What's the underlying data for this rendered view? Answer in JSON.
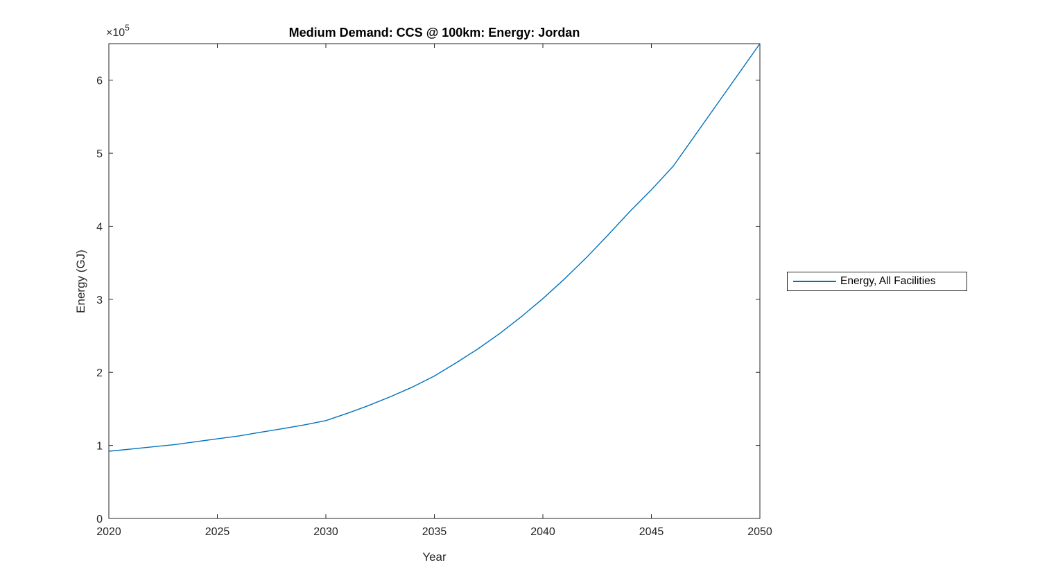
{
  "figure": {
    "background_color": "#ffffff",
    "axis_color": "#262626",
    "accent_color": "#0072BD"
  },
  "chart_data": {
    "type": "line",
    "title": "Medium Demand: CCS @ 100km: Energy: Jordan",
    "xlabel": "Year",
    "ylabel": "Energy (GJ)",
    "xlim": [
      2020,
      2050
    ],
    "ylim": [
      0,
      650000
    ],
    "grid": false,
    "legend_position": "right-outside",
    "x_ticks": [
      2020,
      2025,
      2030,
      2035,
      2040,
      2045,
      2050
    ],
    "x_tick_labels": [
      "2020",
      "2025",
      "2030",
      "2035",
      "2040",
      "2045",
      "2050"
    ],
    "y_ticks": [
      0,
      100000,
      200000,
      300000,
      400000,
      500000,
      600000
    ],
    "y_tick_labels": [
      "0",
      "1",
      "2",
      "3",
      "4",
      "5",
      "6"
    ],
    "y_exponent": {
      "base": "×10",
      "power": "5"
    },
    "x": [
      2020,
      2021,
      2022,
      2023,
      2024,
      2025,
      2026,
      2027,
      2028,
      2029,
      2030,
      2031,
      2032,
      2033,
      2034,
      2035,
      2036,
      2037,
      2038,
      2039,
      2040,
      2041,
      2042,
      2043,
      2044,
      2045,
      2046,
      2047,
      2048,
      2049,
      2050
    ],
    "series": [
      {
        "name": "Energy, All Facilities",
        "color": "#0072BD",
        "values": [
          92000,
          95000,
          98000,
          101000,
          105000,
          109000,
          113000,
          118000,
          123000,
          128000,
          134000,
          144000,
          155000,
          167000,
          180000,
          195000,
          213000,
          232000,
          253000,
          276000,
          301000,
          328000,
          357000,
          388000,
          420000,
          450000,
          482000,
          524000,
          566000,
          608000,
          650000
        ]
      }
    ]
  },
  "legend": {
    "label": "Energy, All Facilities"
  }
}
